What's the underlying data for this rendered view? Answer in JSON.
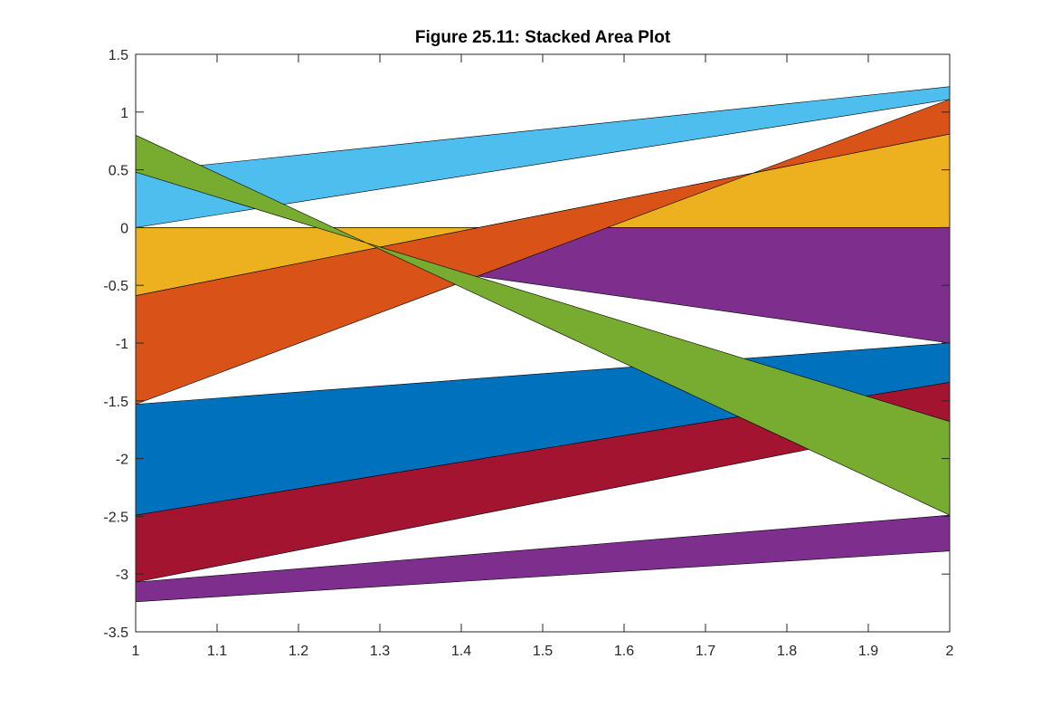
{
  "chart_data": {
    "type": "area",
    "title": "Figure 25.11: Stacked Area Plot",
    "xlabel": "",
    "ylabel": "",
    "xlim": [
      1,
      2
    ],
    "ylim": [
      -3.5,
      1.5
    ],
    "x_ticks": [
      "1",
      "1.1",
      "1.2",
      "1.3",
      "1.4",
      "1.5",
      "1.6",
      "1.7",
      "1.8",
      "1.9",
      "2"
    ],
    "y_ticks": [
      "-3.5",
      "-3",
      "-2.5",
      "-2",
      "-1.5",
      "-1",
      "-0.5",
      "0",
      "0.5",
      "1",
      "1.5"
    ],
    "grid": false,
    "stacked": true,
    "x": [
      1,
      2
    ],
    "series": [
      {
        "values": [
          0,
          -1
        ],
        "color": "#7E2F8E"
      },
      {
        "values": [
          -0.59,
          0.81
        ],
        "color": "#EDB120"
      },
      {
        "values": [
          -0.94,
          0.3
        ],
        "color": "#D95319"
      },
      {
        "values": [
          -0.96,
          -0.34
        ],
        "color": "#0072BD"
      },
      {
        "values": [
          -0.58,
          -0.34
        ],
        "color": "#A2142F"
      },
      {
        "values": [
          0.48,
          0.11
        ],
        "color": "#4DBEEE"
      },
      {
        "values": [
          0.32,
          -0.81
        ],
        "color": "#77AC30"
      },
      {
        "values": [
          -0.17,
          -0.31
        ],
        "color": "#7E2F8E"
      }
    ]
  }
}
